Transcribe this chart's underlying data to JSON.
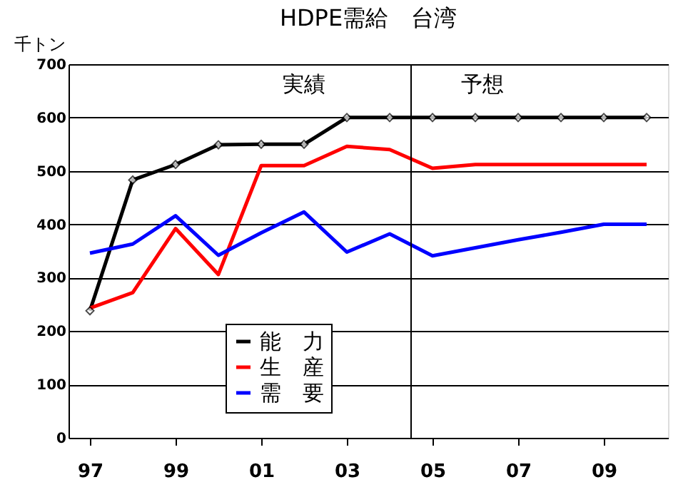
{
  "chart_data": {
    "type": "line",
    "title": "HDPE需給　台湾",
    "ylabel": "千トン",
    "x": [
      1997,
      1998,
      1999,
      2000,
      2001,
      2002,
      2003,
      2004,
      2005,
      2006,
      2007,
      2008,
      2009,
      2010
    ],
    "xlim": [
      1996.5,
      2010.5
    ],
    "xticks": [
      {
        "value": 1997,
        "label": "97"
      },
      {
        "value": 1999,
        "label": "99"
      },
      {
        "value": 2001,
        "label": "01"
      },
      {
        "value": 2003,
        "label": "03"
      },
      {
        "value": 2005,
        "label": "05"
      },
      {
        "value": 2007,
        "label": "07"
      },
      {
        "value": 2009,
        "label": "09"
      }
    ],
    "series": [
      {
        "name": "能　力",
        "color": "#000000",
        "marker": "diamond",
        "values": [
          238,
          483,
          512,
          549,
          550,
          550,
          600,
          600,
          600,
          600,
          600,
          600,
          600,
          600
        ]
      },
      {
        "name": "生　産",
        "color": "#ff0000",
        "values": [
          243,
          272,
          392,
          306,
          510,
          510,
          546,
          540,
          505,
          512,
          512,
          512,
          512,
          512
        ]
      },
      {
        "name": "需　要",
        "color": "#0000ff",
        "values": [
          346,
          363,
          416,
          342,
          384,
          423,
          348,
          382,
          341,
          356,
          371,
          385,
          400,
          400
        ]
      }
    ],
    "ylim": [
      0,
      700
    ],
    "yticks": [
      0,
      100,
      200,
      300,
      400,
      500,
      600,
      700
    ],
    "grid": "y",
    "legend": "bottom left",
    "ref_lines": [
      {
        "axis": "x",
        "value": 2004.5,
        "color": "#000000"
      }
    ],
    "annotations": [
      "実績",
      "予想"
    ]
  }
}
